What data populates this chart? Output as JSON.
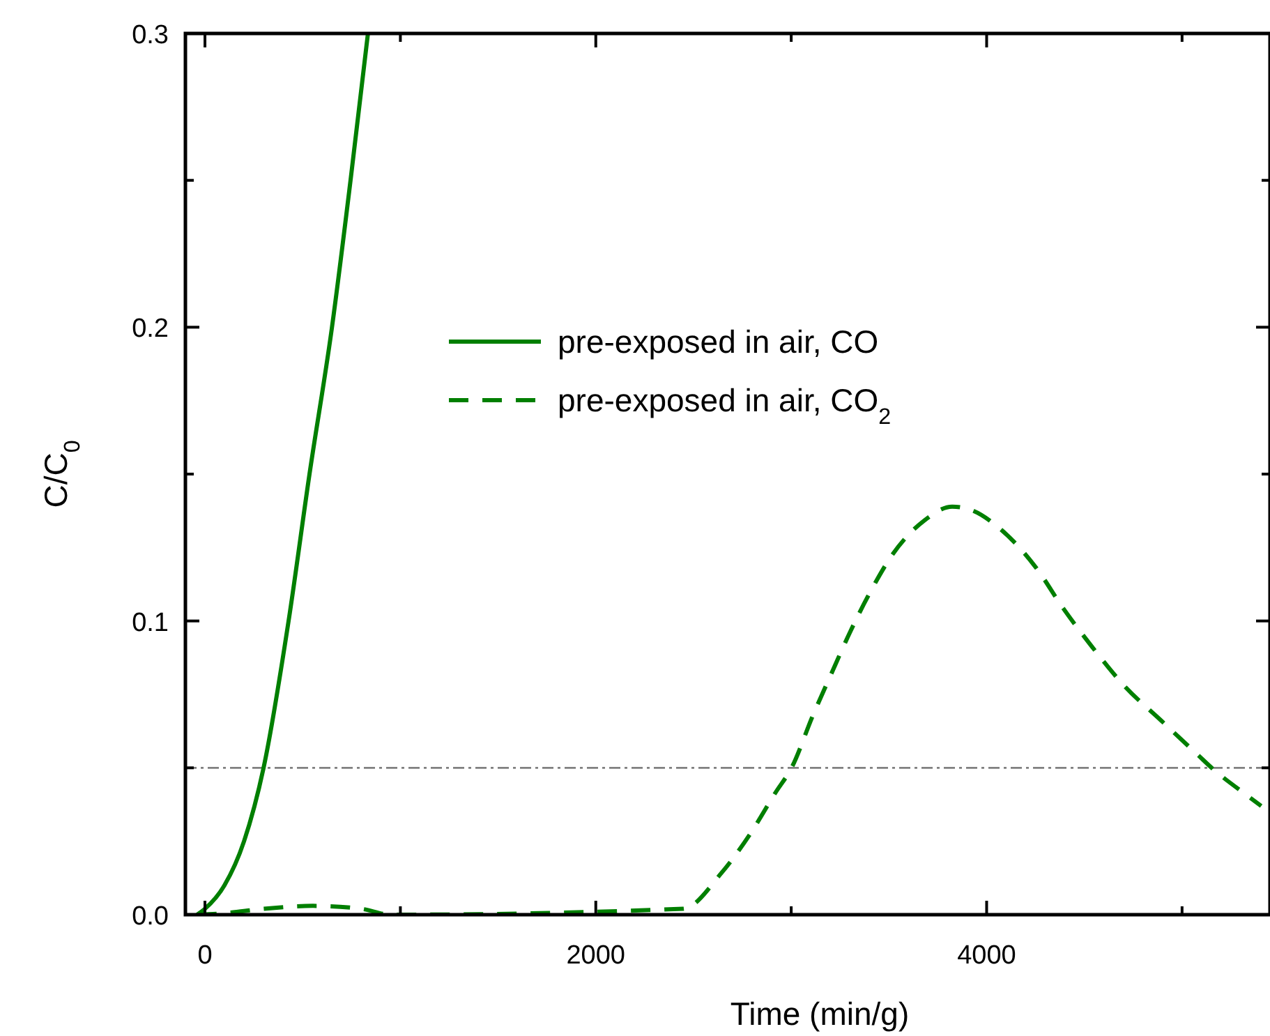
{
  "chart_data": {
    "type": "line",
    "xlabel": "Time (min/g)",
    "ylabel": "C/C$_{0}$",
    "xlim": [
      -100,
      5450
    ],
    "ylim": [
      0,
      0.3
    ],
    "xticks": [
      0,
      {
        "value": 1000,
        "label": null
      },
      2000,
      {
        "value": 3000,
        "label": null
      },
      4000,
      {
        "value": 5000,
        "label": null
      }
    ],
    "yticks": [
      {
        "value": 0,
        "label": "0.0"
      },
      {
        "value": 0.05,
        "label": null
      },
      0.1,
      {
        "value": 0.15,
        "label": null
      },
      0.2,
      {
        "value": 0.25,
        "label": null
      },
      0.3
    ],
    "legend": "top",
    "grid": false,
    "ref_lines": [
      {
        "axis": "y",
        "value": 0.05,
        "color": "#808080",
        "line_style": "dashdot"
      }
    ],
    "series": [
      {
        "name": "pre-exposed in air, CO",
        "color": "#007f00",
        "line_style": "solid",
        "x": [
          -40,
          0,
          100,
          200,
          300,
          428,
          535,
          650,
          745,
          834
        ],
        "values": [
          0,
          0.002,
          0.01,
          0.025,
          0.05,
          0.1,
          0.15,
          0.2,
          0.25,
          0.3
        ]
      },
      {
        "name": "pre-exposed in air, CO$_{2}$",
        "color": "#007f00",
        "line_style": "dashed",
        "x": [
          -40,
          100,
          300,
          550,
          800,
          950,
          2446,
          2643,
          2789,
          2920,
          3004,
          3110,
          3205,
          3301,
          3396,
          3515,
          3681,
          3824,
          3919,
          4061,
          4251,
          4394,
          4537,
          4703,
          4893,
          5084,
          5155,
          5345,
          5405
        ],
        "values": [
          0,
          0.0005,
          0.002,
          0.003,
          0.002,
          0,
          0.002,
          0.0142,
          0.0274,
          0.0416,
          0.0503,
          0.0677,
          0.082,
          0.0962,
          0.1088,
          0.1223,
          0.1342,
          0.1389,
          0.1378,
          0.1318,
          0.1183,
          0.1041,
          0.0914,
          0.078,
          0.0661,
          0.0542,
          0.0498,
          0.04,
          0.037
        ]
      }
    ]
  }
}
